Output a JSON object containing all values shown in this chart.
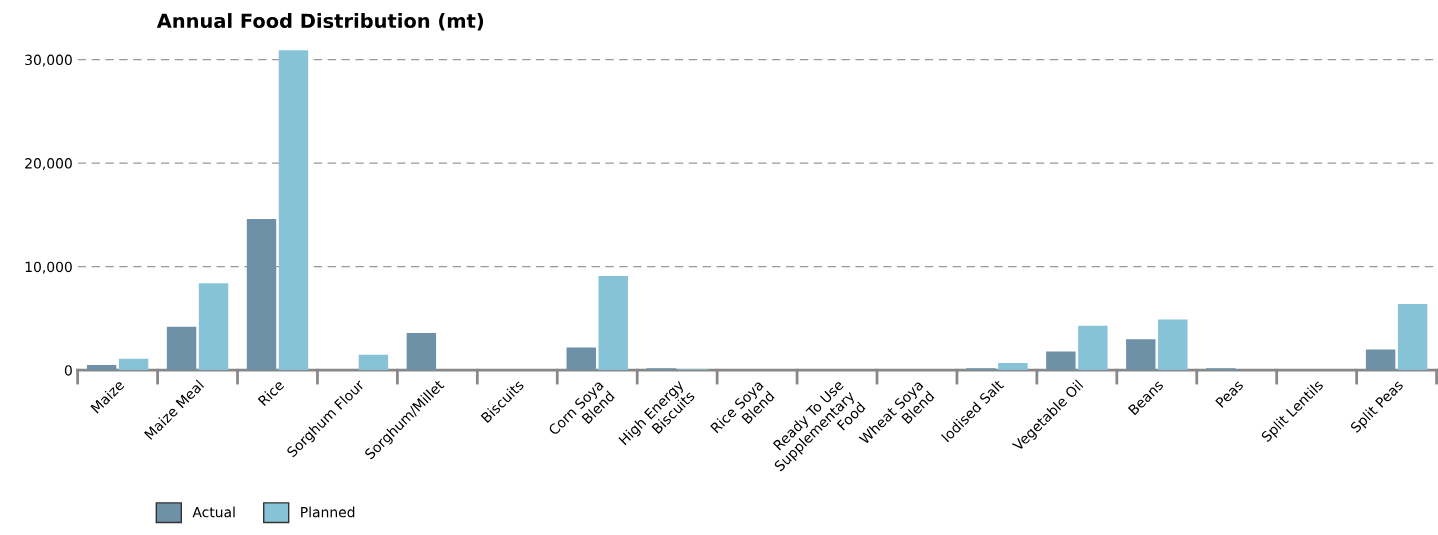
{
  "chart_data": {
    "type": "bar",
    "title": "Annual Food Distribution (mt)",
    "categories": [
      "Maize",
      "Maize Meal",
      "Rice",
      "Sorghum Flour",
      "Sorghum/Millet",
      "Biscuits",
      "Corn Soya\nBlend",
      "High Energy\nBiscuits",
      "Rice Soya\nBlend",
      "Ready To Use\nSupplementary\nFood",
      "Wheat Soya\nBlend",
      "Iodised Salt",
      "Vegetable Oil",
      "Beans",
      "Peas",
      "Split Lentils",
      "Split Peas"
    ],
    "series": [
      {
        "name": "Actual",
        "color": "#6e91a8",
        "values": [
          500,
          4200,
          14600,
          0,
          3600,
          0,
          2200,
          200,
          0,
          0,
          0,
          200,
          1800,
          3000,
          200,
          0,
          2000
        ]
      },
      {
        "name": "Planned",
        "color": "#86c3d7",
        "values": [
          1100,
          8400,
          30900,
          1500,
          0,
          0,
          9100,
          100,
          0,
          0,
          0,
          700,
          4300,
          4900,
          0,
          0,
          6400
        ]
      }
    ],
    "ylim": [
      0,
      31000
    ],
    "yticks": [
      {
        "value": 0,
        "label": "0"
      },
      {
        "value": 10000,
        "label": "10,000"
      },
      {
        "value": 20000,
        "label": "20,000"
      },
      {
        "value": 30000,
        "label": "30,000"
      }
    ],
    "grid": "y",
    "legend": "bottom left"
  }
}
